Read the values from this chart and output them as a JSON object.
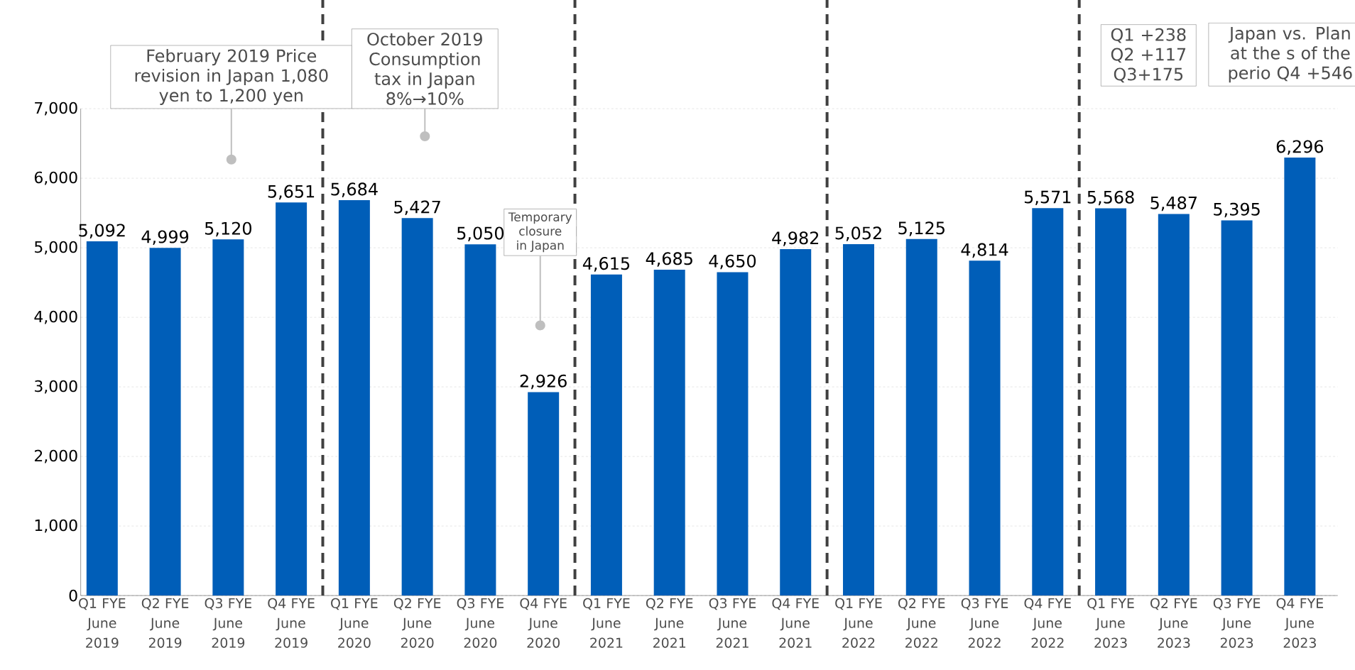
{
  "chart_data": {
    "type": "bar",
    "categories": [
      "Q1 FYE June 2019",
      "Q2 FYE June 2019",
      "Q3 FYE June 2019",
      "Q4 FYE June 2019",
      "Q1 FYE June 2020",
      "Q2 FYE June 2020",
      "Q3 FYE June 2020",
      "Q4 FYE June 2020",
      "Q1 FYE June 2021",
      "Q2 FYE June 2021",
      "Q3 FYE June 2021",
      "Q4 FYE June 2021",
      "Q1 FYE June 2022",
      "Q2 FYE June 2022",
      "Q3 FYE June 2022",
      "Q4 FYE June 2022",
      "Q1 FYE June 2023",
      "Q2 FYE June 2023",
      "Q3 FYE June 2023",
      "Q4 FYE June 2023"
    ],
    "values": [
      5092,
      4999,
      5120,
      5651,
      5684,
      5427,
      5050,
      2926,
      4615,
      4685,
      4650,
      4982,
      5052,
      5125,
      4814,
      5571,
      5568,
      5487,
      5395,
      6296
    ],
    "value_labels": [
      "5,092",
      "4,999",
      "5,120",
      "5,651",
      "5,684",
      "5,427",
      "5,050",
      "2,926",
      "4,615",
      "4,685",
      "4,650",
      "4,982",
      "5,052",
      "5,125",
      "4,814",
      "5,571",
      "5,568",
      "5,487",
      "5,395",
      "6,296"
    ],
    "color": "#005eb8",
    "ylim": [
      0,
      7000
    ],
    "yticks": [
      {
        "value": 0,
        "label": "0"
      },
      {
        "value": 1000,
        "label": "1,000"
      },
      {
        "value": 2000,
        "label": "2,000"
      },
      {
        "value": 3000,
        "label": "3,000"
      },
      {
        "value": 4000,
        "label": "4,000"
      },
      {
        "value": 5000,
        "label": "5,000"
      },
      {
        "value": 6000,
        "label": "6,000"
      },
      {
        "value": 7000,
        "label": "7,000"
      }
    ],
    "grid": "y",
    "annotations": [
      "February 2019 Price revision in Japan 1,080 yen to 1,200 yen",
      "October 2019 Consumption tax in Japan 8%→10%",
      "Temporary closure in Japan",
      "Q1 +238 Q2 +117 Q3+175",
      "Japan vs. Plan at the s of the perio Q4 +546"
    ]
  }
}
